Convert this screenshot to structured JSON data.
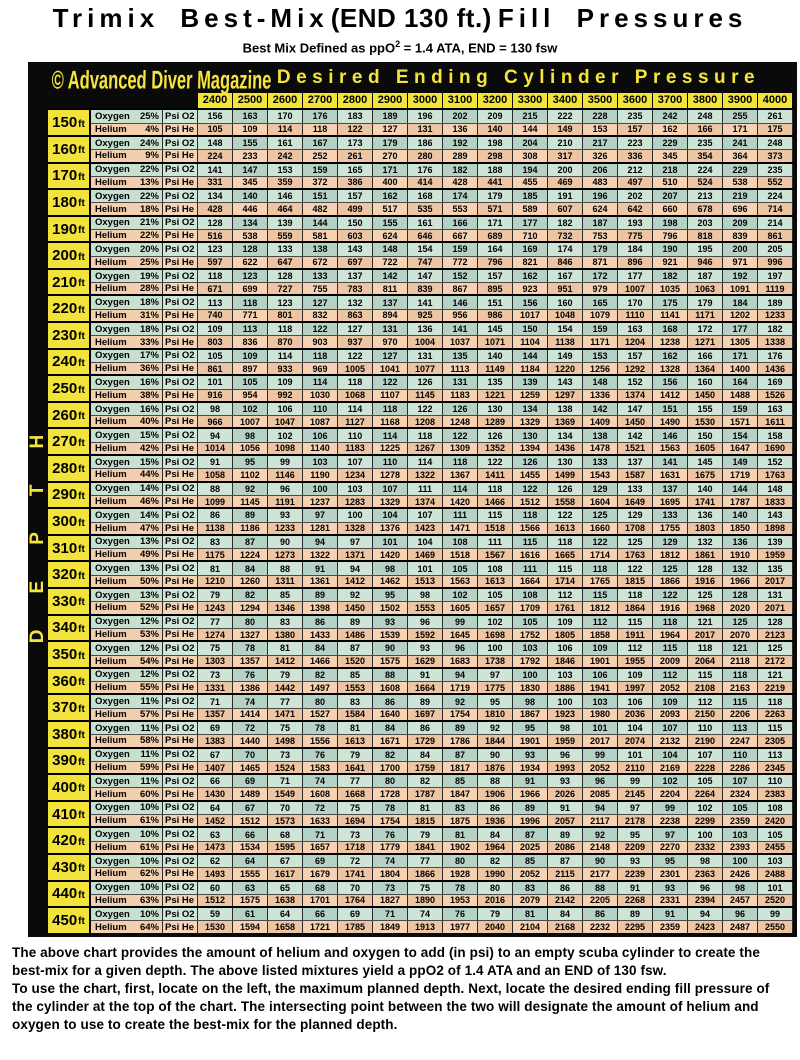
{
  "title": {
    "part1": "Trimix Best-Mix",
    "part2": "(END 130 ft.)",
    "part3": "Fill Pressures"
  },
  "subtitle": {
    "pre": "Best Mix Defined as ppO",
    "sup": "2",
    "post": " = 1.4 ATA, END = 130 fsw"
  },
  "header": {
    "copyright": "© Advanced Diver Magazine",
    "banner": "Desired Ending Cylinder Pressure"
  },
  "left_axis": {
    "label": "DEPTH"
  },
  "labels": {
    "oxygen": "Oxygen",
    "helium": "Helium",
    "psi_o2": "Psi O2",
    "psi_he": "Psi He",
    "ft": "ft"
  },
  "pressures": [
    2400,
    2500,
    2600,
    2700,
    2800,
    2900,
    3000,
    3100,
    3200,
    3300,
    3400,
    3500,
    3600,
    3700,
    3800,
    3900,
    4000
  ],
  "colors": {
    "accent_yellow": "#f2e33b",
    "band_black": "#0a0a0a",
    "oxygen_light": "#cde4d6",
    "oxygen_dark": "#b6d1c5",
    "helium_light": "#f7d2b2",
    "helium_dark": "#edc5a3"
  },
  "rows": [
    {
      "depth": "150",
      "o2_pct": "25%",
      "he_pct": "4%",
      "o2": [
        156,
        163,
        170,
        176,
        183,
        189,
        196,
        202,
        209,
        215,
        222,
        228,
        235,
        242,
        248,
        255,
        261
      ],
      "he": [
        105,
        109,
        114,
        118,
        122,
        127,
        131,
        136,
        140,
        144,
        149,
        153,
        157,
        162,
        166,
        171,
        175
      ]
    },
    {
      "depth": "160",
      "o2_pct": "24%",
      "he_pct": "9%",
      "o2": [
        148,
        155,
        161,
        167,
        173,
        179,
        186,
        192,
        198,
        204,
        210,
        217,
        223,
        229,
        235,
        241,
        248
      ],
      "he": [
        224,
        233,
        242,
        252,
        261,
        270,
        280,
        289,
        298,
        308,
        317,
        326,
        336,
        345,
        354,
        364,
        373
      ]
    },
    {
      "depth": "170",
      "o2_pct": "22%",
      "he_pct": "13%",
      "o2": [
        141,
        147,
        153,
        159,
        165,
        171,
        176,
        182,
        188,
        194,
        200,
        206,
        212,
        218,
        224,
        229,
        235
      ],
      "he": [
        331,
        345,
        359,
        372,
        386,
        400,
        414,
        428,
        441,
        455,
        469,
        483,
        497,
        510,
        524,
        538,
        552
      ]
    },
    {
      "depth": "180",
      "o2_pct": "22%",
      "he_pct": "18%",
      "o2": [
        134,
        140,
        146,
        151,
        157,
        162,
        168,
        174,
        179,
        185,
        191,
        196,
        202,
        207,
        213,
        219,
        224
      ],
      "he": [
        428,
        446,
        464,
        482,
        499,
        517,
        535,
        553,
        571,
        589,
        607,
        624,
        642,
        660,
        678,
        696,
        714
      ]
    },
    {
      "depth": "190",
      "o2_pct": "21%",
      "he_pct": "22%",
      "o2": [
        128,
        134,
        139,
        144,
        150,
        155,
        161,
        166,
        171,
        177,
        182,
        187,
        193,
        198,
        203,
        209,
        214
      ],
      "he": [
        516,
        538,
        559,
        581,
        603,
        624,
        646,
        667,
        689,
        710,
        732,
        753,
        775,
        796,
        818,
        839,
        861
      ]
    },
    {
      "depth": "200",
      "o2_pct": "20%",
      "he_pct": "25%",
      "o2": [
        123,
        128,
        133,
        138,
        143,
        148,
        154,
        159,
        164,
        169,
        174,
        179,
        184,
        190,
        195,
        200,
        205
      ],
      "he": [
        597,
        622,
        647,
        672,
        697,
        722,
        747,
        772,
        796,
        821,
        846,
        871,
        896,
        921,
        946,
        971,
        996
      ]
    },
    {
      "depth": "210",
      "o2_pct": "19%",
      "he_pct": "28%",
      "o2": [
        118,
        123,
        128,
        133,
        137,
        142,
        147,
        152,
        157,
        162,
        167,
        172,
        177,
        182,
        187,
        192,
        197
      ],
      "he": [
        671,
        699,
        727,
        755,
        783,
        811,
        839,
        867,
        895,
        923,
        951,
        979,
        1007,
        1035,
        1063,
        1091,
        1119
      ]
    },
    {
      "depth": "220",
      "o2_pct": "18%",
      "he_pct": "31%",
      "o2": [
        113,
        118,
        123,
        127,
        132,
        137,
        141,
        146,
        151,
        156,
        160,
        165,
        170,
        175,
        179,
        184,
        189
      ],
      "he": [
        740,
        771,
        801,
        832,
        863,
        894,
        925,
        956,
        986,
        1017,
        1048,
        1079,
        1110,
        1141,
        1171,
        1202,
        1233
      ]
    },
    {
      "depth": "230",
      "o2_pct": "18%",
      "he_pct": "33%",
      "o2": [
        109,
        113,
        118,
        122,
        127,
        131,
        136,
        141,
        145,
        150,
        154,
        159,
        163,
        168,
        172,
        177,
        182
      ],
      "he": [
        803,
        836,
        870,
        903,
        937,
        970,
        1004,
        1037,
        1071,
        1104,
        1138,
        1171,
        1204,
        1238,
        1271,
        1305,
        1338
      ]
    },
    {
      "depth": "240",
      "o2_pct": "17%",
      "he_pct": "36%",
      "o2": [
        105,
        109,
        114,
        118,
        122,
        127,
        131,
        135,
        140,
        144,
        149,
        153,
        157,
        162,
        166,
        171,
        176
      ],
      "he": [
        861,
        897,
        933,
        969,
        1005,
        1041,
        1077,
        1113,
        1149,
        1184,
        1220,
        1256,
        1292,
        1328,
        1364,
        1400,
        1436
      ]
    },
    {
      "depth": "250",
      "o2_pct": "16%",
      "he_pct": "38%",
      "o2": [
        101,
        105,
        109,
        114,
        118,
        122,
        126,
        131,
        135,
        139,
        143,
        148,
        152,
        156,
        160,
        164,
        169
      ],
      "he": [
        916,
        954,
        992,
        1030,
        1068,
        1107,
        1145,
        1183,
        1221,
        1259,
        1297,
        1336,
        1374,
        1412,
        1450,
        1488,
        1526
      ]
    },
    {
      "depth": "260",
      "o2_pct": "16%",
      "he_pct": "40%",
      "o2": [
        98,
        102,
        106,
        110,
        114,
        118,
        122,
        126,
        130,
        134,
        138,
        142,
        147,
        151,
        155,
        159,
        163
      ],
      "he": [
        966,
        1007,
        1047,
        1087,
        1127,
        1168,
        1208,
        1248,
        1289,
        1329,
        1369,
        1409,
        1450,
        1490,
        1530,
        1571,
        1611
      ]
    },
    {
      "depth": "270",
      "o2_pct": "15%",
      "he_pct": "42%",
      "o2": [
        94,
        98,
        102,
        106,
        110,
        114,
        118,
        122,
        126,
        130,
        134,
        138,
        142,
        146,
        150,
        154,
        158
      ],
      "he": [
        1014,
        1056,
        1098,
        1140,
        1183,
        1225,
        1267,
        1309,
        1352,
        1394,
        1436,
        1478,
        1521,
        1563,
        1605,
        1647,
        1690
      ]
    },
    {
      "depth": "280",
      "o2_pct": "15%",
      "he_pct": "44%",
      "o2": [
        91,
        95,
        99,
        103,
        107,
        110,
        114,
        118,
        122,
        126,
        130,
        133,
        137,
        141,
        145,
        149,
        152
      ],
      "he": [
        1058,
        1102,
        1146,
        1190,
        1234,
        1278,
        1322,
        1367,
        1411,
        1455,
        1499,
        1543,
        1587,
        1631,
        1675,
        1719,
        1763
      ]
    },
    {
      "depth": "290",
      "o2_pct": "14%",
      "he_pct": "46%",
      "o2": [
        88,
        92,
        96,
        100,
        103,
        107,
        111,
        114,
        118,
        122,
        126,
        129,
        133,
        137,
        140,
        144,
        148
      ],
      "he": [
        1099,
        1145,
        1191,
        1237,
        1283,
        1329,
        1374,
        1420,
        1466,
        1512,
        1558,
        1604,
        1649,
        1695,
        1741,
        1787,
        1833
      ]
    },
    {
      "depth": "300",
      "o2_pct": "14%",
      "he_pct": "47%",
      "o2": [
        86,
        89,
        93,
        97,
        100,
        104,
        107,
        111,
        115,
        118,
        122,
        125,
        129,
        133,
        136,
        140,
        143
      ],
      "he": [
        1138,
        1186,
        1233,
        1281,
        1328,
        1376,
        1423,
        1471,
        1518,
        1566,
        1613,
        1660,
        1708,
        1755,
        1803,
        1850,
        1898
      ]
    },
    {
      "depth": "310",
      "o2_pct": "13%",
      "he_pct": "49%",
      "o2": [
        83,
        87,
        90,
        94,
        97,
        101,
        104,
        108,
        111,
        115,
        118,
        122,
        125,
        129,
        132,
        136,
        139
      ],
      "he": [
        1175,
        1224,
        1273,
        1322,
        1371,
        1420,
        1469,
        1518,
        1567,
        1616,
        1665,
        1714,
        1763,
        1812,
        1861,
        1910,
        1959
      ]
    },
    {
      "depth": "320",
      "o2_pct": "13%",
      "he_pct": "50%",
      "o2": [
        81,
        84,
        88,
        91,
        94,
        98,
        101,
        105,
        108,
        111,
        115,
        118,
        122,
        125,
        128,
        132,
        135
      ],
      "he": [
        1210,
        1260,
        1311,
        1361,
        1412,
        1462,
        1513,
        1563,
        1613,
        1664,
        1714,
        1765,
        1815,
        1866,
        1916,
        1966,
        2017
      ]
    },
    {
      "depth": "330",
      "o2_pct": "13%",
      "he_pct": "52%",
      "o2": [
        79,
        82,
        85,
        89,
        92,
        95,
        98,
        102,
        105,
        108,
        112,
        115,
        118,
        122,
        125,
        128,
        131
      ],
      "he": [
        1243,
        1294,
        1346,
        1398,
        1450,
        1502,
        1553,
        1605,
        1657,
        1709,
        1761,
        1812,
        1864,
        1916,
        1968,
        2020,
        2071
      ]
    },
    {
      "depth": "340",
      "o2_pct": "12%",
      "he_pct": "53%",
      "o2": [
        77,
        80,
        83,
        86,
        89,
        93,
        96,
        99,
        102,
        105,
        109,
        112,
        115,
        118,
        121,
        125,
        128
      ],
      "he": [
        1274,
        1327,
        1380,
        1433,
        1486,
        1539,
        1592,
        1645,
        1698,
        1752,
        1805,
        1858,
        1911,
        1964,
        2017,
        2070,
        2123
      ]
    },
    {
      "depth": "350",
      "o2_pct": "12%",
      "he_pct": "54%",
      "o2": [
        75,
        78,
        81,
        84,
        87,
        90,
        93,
        96,
        100,
        103,
        106,
        109,
        112,
        115,
        118,
        121,
        125
      ],
      "he": [
        1303,
        1357,
        1412,
        1466,
        1520,
        1575,
        1629,
        1683,
        1738,
        1792,
        1846,
        1901,
        1955,
        2009,
        2064,
        2118,
        2172
      ]
    },
    {
      "depth": "360",
      "o2_pct": "12%",
      "he_pct": "55%",
      "o2": [
        73,
        76,
        79,
        82,
        85,
        88,
        91,
        94,
        97,
        100,
        103,
        106,
        109,
        112,
        115,
        118,
        121
      ],
      "he": [
        1331,
        1386,
        1442,
        1497,
        1553,
        1608,
        1664,
        1719,
        1775,
        1830,
        1886,
        1941,
        1997,
        2052,
        2108,
        2163,
        2219
      ]
    },
    {
      "depth": "370",
      "o2_pct": "11%",
      "he_pct": "57%",
      "o2": [
        71,
        74,
        77,
        80,
        83,
        86,
        89,
        92,
        95,
        98,
        100,
        103,
        106,
        109,
        112,
        115,
        118
      ],
      "he": [
        1357,
        1414,
        1471,
        1527,
        1584,
        1640,
        1697,
        1754,
        1810,
        1867,
        1923,
        1980,
        2036,
        2093,
        2150,
        2206,
        2263
      ]
    },
    {
      "depth": "380",
      "o2_pct": "11%",
      "he_pct": "58%",
      "o2": [
        69,
        72,
        75,
        78,
        81,
        84,
        86,
        89,
        92,
        95,
        98,
        101,
        104,
        107,
        110,
        113,
        115
      ],
      "he": [
        1383,
        1440,
        1498,
        1556,
        1613,
        1671,
        1729,
        1786,
        1844,
        1901,
        1959,
        2017,
        2074,
        2132,
        2190,
        2247,
        2305
      ]
    },
    {
      "depth": "390",
      "o2_pct": "11%",
      "he_pct": "59%",
      "o2": [
        67,
        70,
        73,
        76,
        79,
        82,
        84,
        87,
        90,
        93,
        96,
        99,
        101,
        104,
        107,
        110,
        113
      ],
      "he": [
        1407,
        1465,
        1524,
        1583,
        1641,
        1700,
        1759,
        1817,
        1876,
        1934,
        1993,
        2052,
        2110,
        2169,
        2228,
        2286,
        2345
      ]
    },
    {
      "depth": "400",
      "o2_pct": "11%",
      "he_pct": "60%",
      "o2": [
        66,
        69,
        71,
        74,
        77,
        80,
        82,
        85,
        88,
        91,
        93,
        96,
        99,
        102,
        105,
        107,
        110
      ],
      "he": [
        1430,
        1489,
        1549,
        1608,
        1668,
        1728,
        1787,
        1847,
        1906,
        1966,
        2026,
        2085,
        2145,
        2204,
        2264,
        2324,
        2383
      ]
    },
    {
      "depth": "410",
      "o2_pct": "10%",
      "he_pct": "61%",
      "o2": [
        64,
        67,
        70,
        72,
        75,
        78,
        81,
        83,
        86,
        89,
        91,
        94,
        97,
        99,
        102,
        105,
        108
      ],
      "he": [
        1452,
        1512,
        1573,
        1633,
        1694,
        1754,
        1815,
        1875,
        1936,
        1996,
        2057,
        2117,
        2178,
        2238,
        2299,
        2359,
        2420
      ]
    },
    {
      "depth": "420",
      "o2_pct": "10%",
      "he_pct": "61%",
      "o2": [
        63,
        66,
        68,
        71,
        73,
        76,
        79,
        81,
        84,
        87,
        89,
        92,
        95,
        97,
        100,
        103,
        105
      ],
      "he": [
        1473,
        1534,
        1595,
        1657,
        1718,
        1779,
        1841,
        1902,
        1964,
        2025,
        2086,
        2148,
        2209,
        2270,
        2332,
        2393,
        2455
      ]
    },
    {
      "depth": "430",
      "o2_pct": "10%",
      "he_pct": "62%",
      "o2": [
        62,
        64,
        67,
        69,
        72,
        74,
        77,
        80,
        82,
        85,
        87,
        90,
        93,
        95,
        98,
        100,
        103
      ],
      "he": [
        1493,
        1555,
        1617,
        1679,
        1741,
        1804,
        1866,
        1928,
        1990,
        2052,
        2115,
        2177,
        2239,
        2301,
        2363,
        2426,
        2488
      ]
    },
    {
      "depth": "440",
      "o2_pct": "10%",
      "he_pct": "63%",
      "o2": [
        60,
        63,
        65,
        68,
        70,
        73,
        75,
        78,
        80,
        83,
        86,
        88,
        91,
        93,
        96,
        98,
        101
      ],
      "he": [
        1512,
        1575,
        1638,
        1701,
        1764,
        1827,
        1890,
        1953,
        2016,
        2079,
        2142,
        2205,
        2268,
        2331,
        2394,
        2457,
        2520
      ]
    },
    {
      "depth": "450",
      "o2_pct": "10%",
      "he_pct": "64%",
      "o2": [
        59,
        61,
        64,
        66,
        69,
        71,
        74,
        76,
        79,
        81,
        84,
        86,
        89,
        91,
        94,
        96,
        99
      ],
      "he": [
        1530,
        1594,
        1658,
        1721,
        1785,
        1849,
        1913,
        1977,
        2040,
        2104,
        2168,
        2232,
        2295,
        2359,
        2423,
        2487,
        2550
      ]
    }
  ],
  "footer": {
    "lines": [
      "The above chart provides the amount of helium and oxygen to add (in psi) to an empty scuba cylinder to create the",
      "best-mix for a given depth. The above listed mixtures yield a ppO2 of 1.4 ATA and an END of 130 fsw.",
      "To use the chart, first, locate on the left, the maximum planned depth. Next, locate the desired ending fill pressure of",
      "the cylinder at the top of the chart. The intersecting point between the two will designate the amount of helium and",
      "oxygen to use to create the best-mix for the planned depth."
    ]
  }
}
